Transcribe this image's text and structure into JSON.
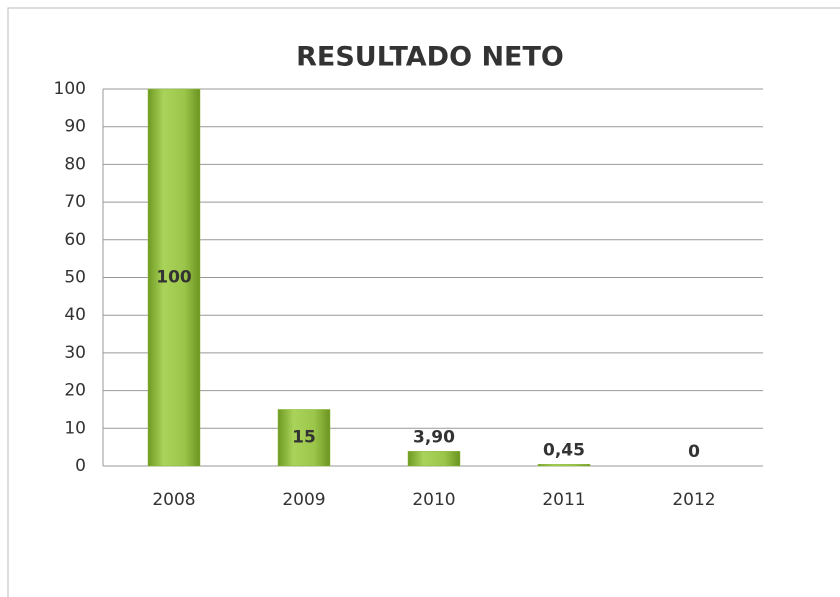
{
  "chart_data": {
    "type": "bar",
    "title": "RESULTADO NETO",
    "categories": [
      "2008",
      "2009",
      "2010",
      "2011",
      "2012"
    ],
    "values": [
      100,
      15,
      3.9,
      0.45,
      0
    ],
    "value_labels": [
      "100",
      "15",
      "3,90",
      "0,45",
      "0"
    ],
    "color": "#8db83a",
    "ylim": [
      0,
      100
    ],
    "yticks": [
      0,
      10,
      20,
      30,
      40,
      50,
      60,
      70,
      80,
      90,
      100
    ],
    "grid": true
  }
}
